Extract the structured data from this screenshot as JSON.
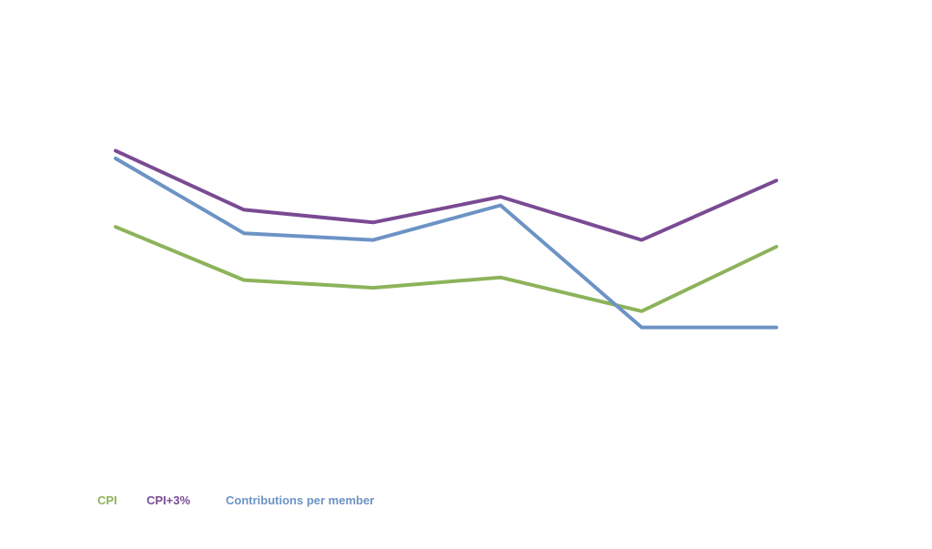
{
  "chart_data": {
    "type": "line",
    "title": "",
    "xlabel": "",
    "ylabel": "",
    "x": [
      1,
      2,
      3,
      4,
      5,
      6
    ],
    "ylim": [
      0,
      100
    ],
    "grid": false,
    "legend_position": "bottom-left",
    "series": [
      {
        "name": "CPI",
        "color": "#8db35a",
        "values": [
          54.7,
          42.9,
          41.2,
          43.5,
          36.0,
          50.3
        ]
      },
      {
        "name": "CPI+3%",
        "color": "#7a4a93",
        "values": [
          71.6,
          58.5,
          55.7,
          61.4,
          51.8,
          65.0
        ]
      },
      {
        "name": "Contributions per member",
        "color": "#6c93c4",
        "values": [
          69.9,
          53.3,
          51.8,
          59.5,
          32.4,
          32.4
        ]
      }
    ]
  }
}
